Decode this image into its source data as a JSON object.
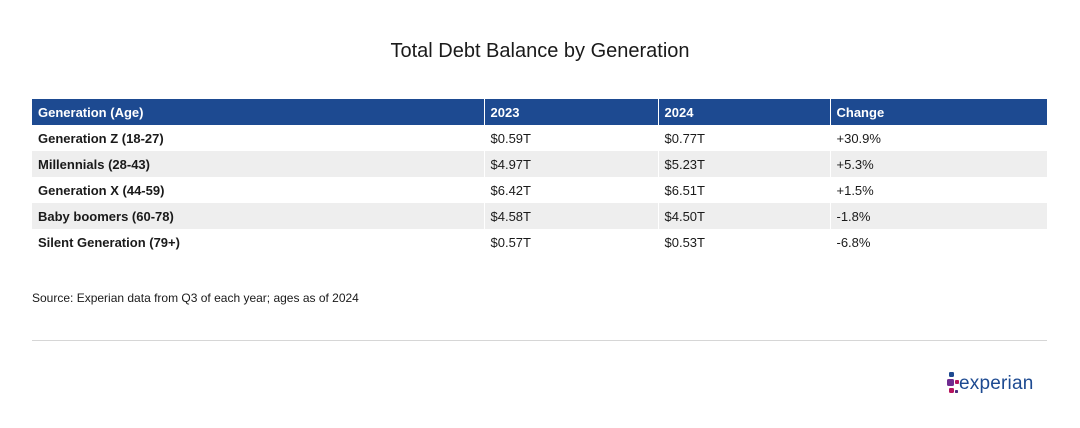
{
  "title": "Total Debt Balance by Generation",
  "table": {
    "headers": [
      "Generation (Age)",
      "2023",
      "2024",
      "Change"
    ],
    "rows": [
      [
        "Generation Z (18-27)",
        "$0.59T",
        "$0.77T",
        "+30.9%"
      ],
      [
        "Millennials (28-43)",
        "$4.97T",
        "$5.23T",
        "+5.3%"
      ],
      [
        "Generation X (44-59)",
        "$6.42T",
        "$6.51T",
        "+1.5%"
      ],
      [
        "Baby boomers (60-78)",
        "$4.58T",
        "$4.50T",
        "-1.8%"
      ],
      [
        "Silent Generation (79+)",
        "$0.57T",
        "$0.53T",
        "-6.8%"
      ]
    ]
  },
  "source": "Source: Experian data from Q3 of each year; ages as of 2024",
  "logo": {
    "text": "experian",
    "colors": {
      "brand_blue": "#1d4a91",
      "magenta": "#b5145e",
      "purple": "#6f2c91",
      "dark_purple": "#4b2a7c"
    }
  },
  "colors": {
    "header_bg": "#1d4a91",
    "header_text": "#ffffff",
    "stripe": "#eeeeee"
  },
  "chart_data": {
    "type": "table",
    "title": "Total Debt Balance by Generation",
    "columns": [
      "Generation (Age)",
      "2023",
      "2024",
      "Change"
    ],
    "rows": [
      {
        "generation": "Generation Z (18-27)",
        "2023": "$0.59T",
        "2024": "$0.77T",
        "change": "+30.9%"
      },
      {
        "generation": "Millennials (28-43)",
        "2023": "$4.97T",
        "2024": "$5.23T",
        "change": "+5.3%"
      },
      {
        "generation": "Generation X (44-59)",
        "2023": "$6.42T",
        "2024": "$6.51T",
        "change": "+1.5%"
      },
      {
        "generation": "Baby boomers (60-78)",
        "2023": "$4.58T",
        "2024": "$4.50T",
        "change": "-1.8%"
      },
      {
        "generation": "Silent Generation (79+)",
        "2023": "$0.57T",
        "2024": "$0.53T",
        "change": "-6.8%"
      }
    ]
  }
}
